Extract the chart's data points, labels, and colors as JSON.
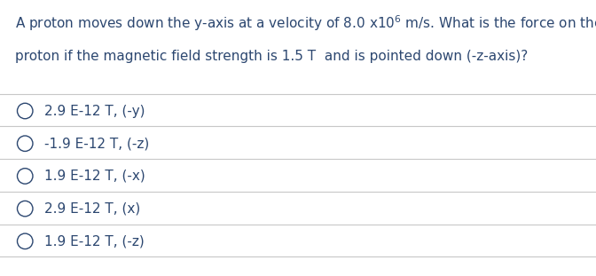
{
  "background_color": "#ffffff",
  "question_line1": "A proton moves down the y-axis at a velocity of 8.0 x10$^6$ m/s. What is the force on the",
  "question_line2": "proton if the magnetic field strength is 1.5 T  and is pointed down (-z-axis)?",
  "options": [
    "2.9 E-12 T, (-y)",
    "-1.9 E-12 T, (-z)",
    "1.9 E-12 T, (-x)",
    "2.9 E-12 T, (x)",
    "1.9 E-12 T, (-z)"
  ],
  "text_color": "#2c4770",
  "divider_color": "#c8c8c8",
  "font_size_question": 11.0,
  "font_size_options": 11.0,
  "figsize": [
    6.72,
    3.11
  ],
  "dpi": 100
}
